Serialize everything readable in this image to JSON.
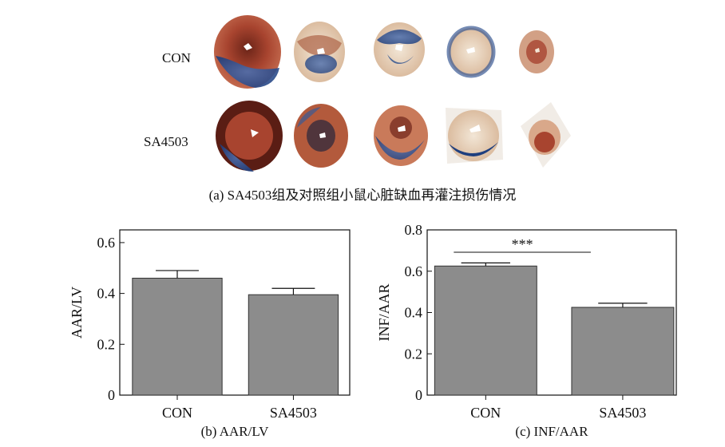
{
  "panel_a": {
    "row_labels": [
      "CON",
      "SA4503"
    ],
    "caption": "(a) SA4503组及对照组小鼠心脏缺血再灌注损伤情况",
    "colors": {
      "viable_red": "#a8442f",
      "blue_stain": "#2a4f8f",
      "pale_infarct": "#e7d3bc"
    }
  },
  "chart_data": [
    {
      "type": "bar",
      "caption": "(b) AAR/LV",
      "categories": [
        "CON",
        "SA4503"
      ],
      "values": [
        0.46,
        0.395
      ],
      "errors": [
        0.03,
        0.025
      ],
      "ylabel": "AAR/LV",
      "ylim": [
        0,
        0.65
      ],
      "yticks": [
        "0",
        "0.2",
        "0.4",
        "0.6"
      ],
      "ytick_values": [
        0,
        0.2,
        0.4,
        0.6
      ],
      "grid": false,
      "bar_color": "#8c8c8c"
    },
    {
      "type": "bar",
      "caption": "(c) INF/AAR",
      "categories": [
        "CON",
        "SA4503"
      ],
      "values": [
        0.625,
        0.425
      ],
      "errors": [
        0.015,
        0.02
      ],
      "ylabel": "INF/AAR",
      "ylim": [
        0,
        0.8
      ],
      "yticks": [
        "0",
        "0.2",
        "0.4",
        "0.6",
        "0.8"
      ],
      "ytick_values": [
        0,
        0.2,
        0.4,
        0.6,
        0.8
      ],
      "grid": false,
      "significance": "***",
      "bar_color": "#8c8c8c"
    }
  ]
}
